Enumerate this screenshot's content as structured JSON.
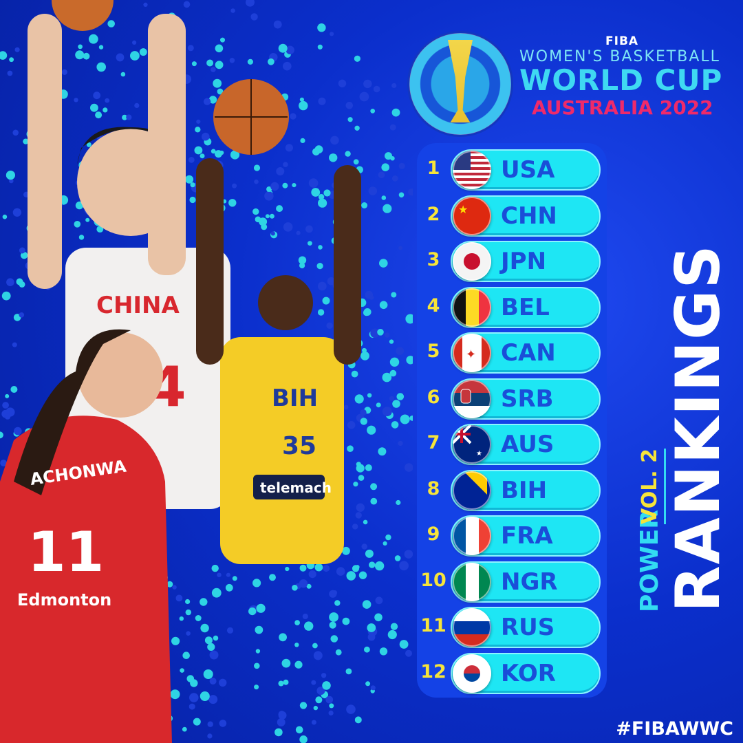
{
  "logo": {
    "fiba": "FIBA",
    "line1": "WOMEN'S BASKETBALL",
    "line2": "WORLD CUP",
    "line3": "AUSTRALIA 2022"
  },
  "photo": {
    "jerseys": [
      "CHINA",
      "4",
      "BIH",
      "35",
      "telemach",
      "ACHONWA",
      "11",
      "Edmonton"
    ]
  },
  "rankings": [
    {
      "rank": "1",
      "code": "USA",
      "flag": "usa-flag"
    },
    {
      "rank": "2",
      "code": "CHN",
      "flag": "china-flag"
    },
    {
      "rank": "3",
      "code": "JPN",
      "flag": "japan-flag"
    },
    {
      "rank": "4",
      "code": "BEL",
      "flag": "belgium-flag"
    },
    {
      "rank": "5",
      "code": "CAN",
      "flag": "canada-flag"
    },
    {
      "rank": "6",
      "code": "SRB",
      "flag": "serbia-flag"
    },
    {
      "rank": "7",
      "code": "AUS",
      "flag": "australia-flag"
    },
    {
      "rank": "8",
      "code": "BIH",
      "flag": "bosnia-flag"
    },
    {
      "rank": "9",
      "code": "FRA",
      "flag": "france-flag"
    },
    {
      "rank": "10",
      "code": "NGR",
      "flag": "nigeria-flag"
    },
    {
      "rank": "11",
      "code": "RUS",
      "flag": "russia-flag"
    },
    {
      "rank": "12",
      "code": "KOR",
      "flag": "korea-flag"
    }
  ],
  "title": {
    "power": "POWER",
    "vol": "VOL. 2",
    "rankings": "RANKINGS"
  },
  "hashtag": "#FIBAWWC",
  "colors": {
    "background": "#0b2fcc",
    "pill": "#1ee6f4",
    "rank_number": "#f6e43a",
    "code_text": "#1a4ed8",
    "accent_pink": "#ee2a6a"
  }
}
